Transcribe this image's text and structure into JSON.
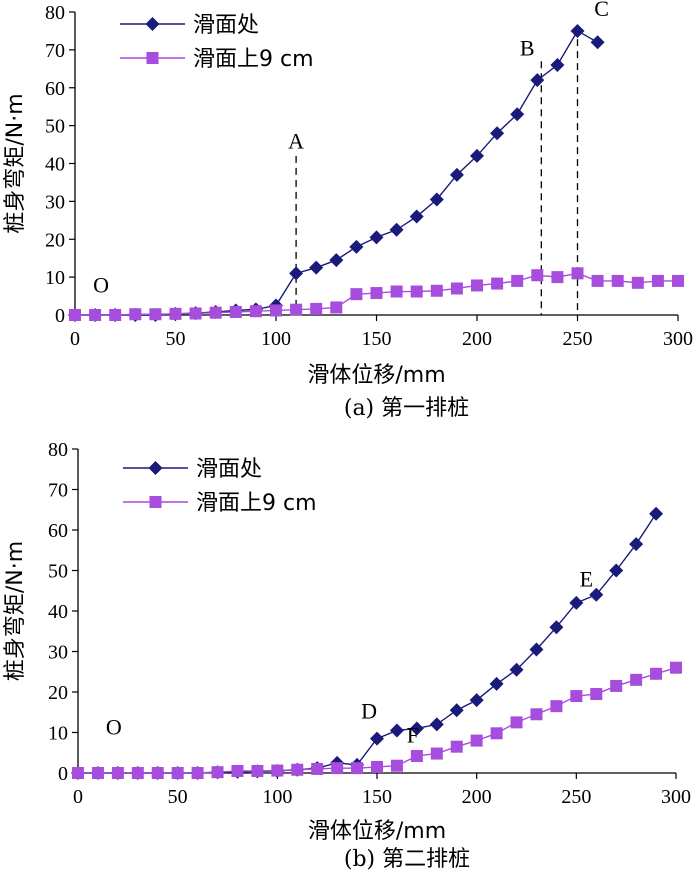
{
  "chart_data": [
    {
      "type": "line",
      "caption": "(a) 第一排桩",
      "xlabel": "滑体位移/mm",
      "ylabel": "桩身弯矩/N·m",
      "xlim": [
        0,
        300
      ],
      "ylim": [
        0,
        80
      ],
      "xticks": [
        "0",
        "50",
        "100",
        "150",
        "200",
        "250",
        "300"
      ],
      "yticks": [
        "0",
        "10",
        "20",
        "30",
        "40",
        "50",
        "60",
        "70",
        "80"
      ],
      "legend_position": "top-left",
      "series": [
        {
          "name": "滑面处",
          "marker": "diamond",
          "color": "#1a1a7a",
          "x": [
            0,
            10,
            20,
            30,
            40,
            50,
            60,
            70,
            80,
            90,
            100,
            110,
            120,
            130,
            140,
            150,
            160,
            170,
            180,
            190,
            200,
            210,
            220,
            230,
            240,
            250,
            260
          ],
          "y": [
            0,
            0,
            0,
            0,
            0,
            0.3,
            0.5,
            0.8,
            1.2,
            1.5,
            2.5,
            11,
            12.5,
            14.5,
            18,
            20.5,
            22.5,
            26,
            30.5,
            37,
            42,
            48,
            53,
            62,
            66,
            75,
            72
          ]
        },
        {
          "name": "滑面上9 cm",
          "marker": "square",
          "color": "#a64ddd",
          "x": [
            0,
            10,
            20,
            30,
            40,
            50,
            60,
            70,
            80,
            90,
            100,
            110,
            120,
            130,
            140,
            150,
            160,
            170,
            180,
            190,
            200,
            210,
            220,
            230,
            240,
            250,
            260,
            270,
            280,
            290,
            300
          ],
          "y": [
            0,
            0,
            0,
            0.2,
            0.2,
            0.3,
            0.4,
            0.6,
            0.8,
            1.0,
            1.2,
            1.4,
            1.6,
            2.0,
            5.5,
            5.8,
            6.2,
            6.2,
            6.4,
            7.0,
            7.8,
            8.3,
            9.0,
            10.5,
            10.0,
            11.0,
            9.0,
            9.0,
            8.5,
            9.0,
            9.0
          ]
        }
      ],
      "vlines": [
        110,
        232,
        250
      ],
      "annotations": [
        {
          "text": "O",
          "x": 13,
          "y": 6
        },
        {
          "text": "A",
          "x": 110,
          "y": 44
        },
        {
          "text": "B",
          "x": 225,
          "y": 68.5
        },
        {
          "text": "C",
          "x": 262,
          "y": 79
        }
      ]
    },
    {
      "type": "line",
      "caption": "(b) 第二排桩",
      "xlabel": "滑体位移/mm",
      "ylabel": "桩身弯矩/N·m",
      "xlim": [
        0,
        300
      ],
      "ylim": [
        0,
        80
      ],
      "xticks": [
        "0",
        "50",
        "100",
        "150",
        "200",
        "250",
        "300"
      ],
      "yticks": [
        "0",
        "10",
        "20",
        "30",
        "40",
        "50",
        "60",
        "70",
        "80"
      ],
      "legend_position": "top-left",
      "series": [
        {
          "name": "滑面处",
          "marker": "diamond",
          "color": "#1a1a7a",
          "x": [
            0,
            10,
            20,
            30,
            40,
            50,
            60,
            70,
            80,
            90,
            100,
            110,
            120,
            130,
            140,
            150,
            160,
            170,
            180,
            190,
            200,
            210,
            220,
            230,
            240,
            250,
            260,
            270,
            280,
            290
          ],
          "y": [
            0,
            0,
            0,
            0,
            0,
            0,
            0,
            0.2,
            0.3,
            0.4,
            0.5,
            0.8,
            1.2,
            2.5,
            2.0,
            8.5,
            10.5,
            11.0,
            12.0,
            15.5,
            18.0,
            22.0,
            25.5,
            30.5,
            36.0,
            42.0,
            44.0,
            50.0,
            56.5,
            64.0
          ]
        },
        {
          "name": "滑面上9 cm",
          "marker": "square",
          "color": "#a64ddd",
          "x": [
            0,
            10,
            20,
            30,
            40,
            50,
            60,
            70,
            80,
            90,
            100,
            110,
            120,
            130,
            140,
            150,
            160,
            170,
            180,
            190,
            200,
            210,
            220,
            230,
            240,
            250,
            260,
            270,
            280,
            290,
            300
          ],
          "y": [
            0,
            0,
            0,
            0,
            0,
            0,
            0,
            0.2,
            0.5,
            0.5,
            0.6,
            0.8,
            1.0,
            1.2,
            1.2,
            1.5,
            1.8,
            4.2,
            4.8,
            6.5,
            8.0,
            9.8,
            12.5,
            14.5,
            16.5,
            19.0,
            19.5,
            21.5,
            23.0,
            24.5,
            26.0
          ]
        }
      ],
      "vlines": [],
      "annotations": [
        {
          "text": "O",
          "x": 18,
          "y": 9.5
        },
        {
          "text": "D",
          "x": 146,
          "y": 13.5
        },
        {
          "text": "F",
          "x": 168,
          "y": 7.5
        },
        {
          "text": "E",
          "x": 255,
          "y": 46
        }
      ]
    }
  ]
}
